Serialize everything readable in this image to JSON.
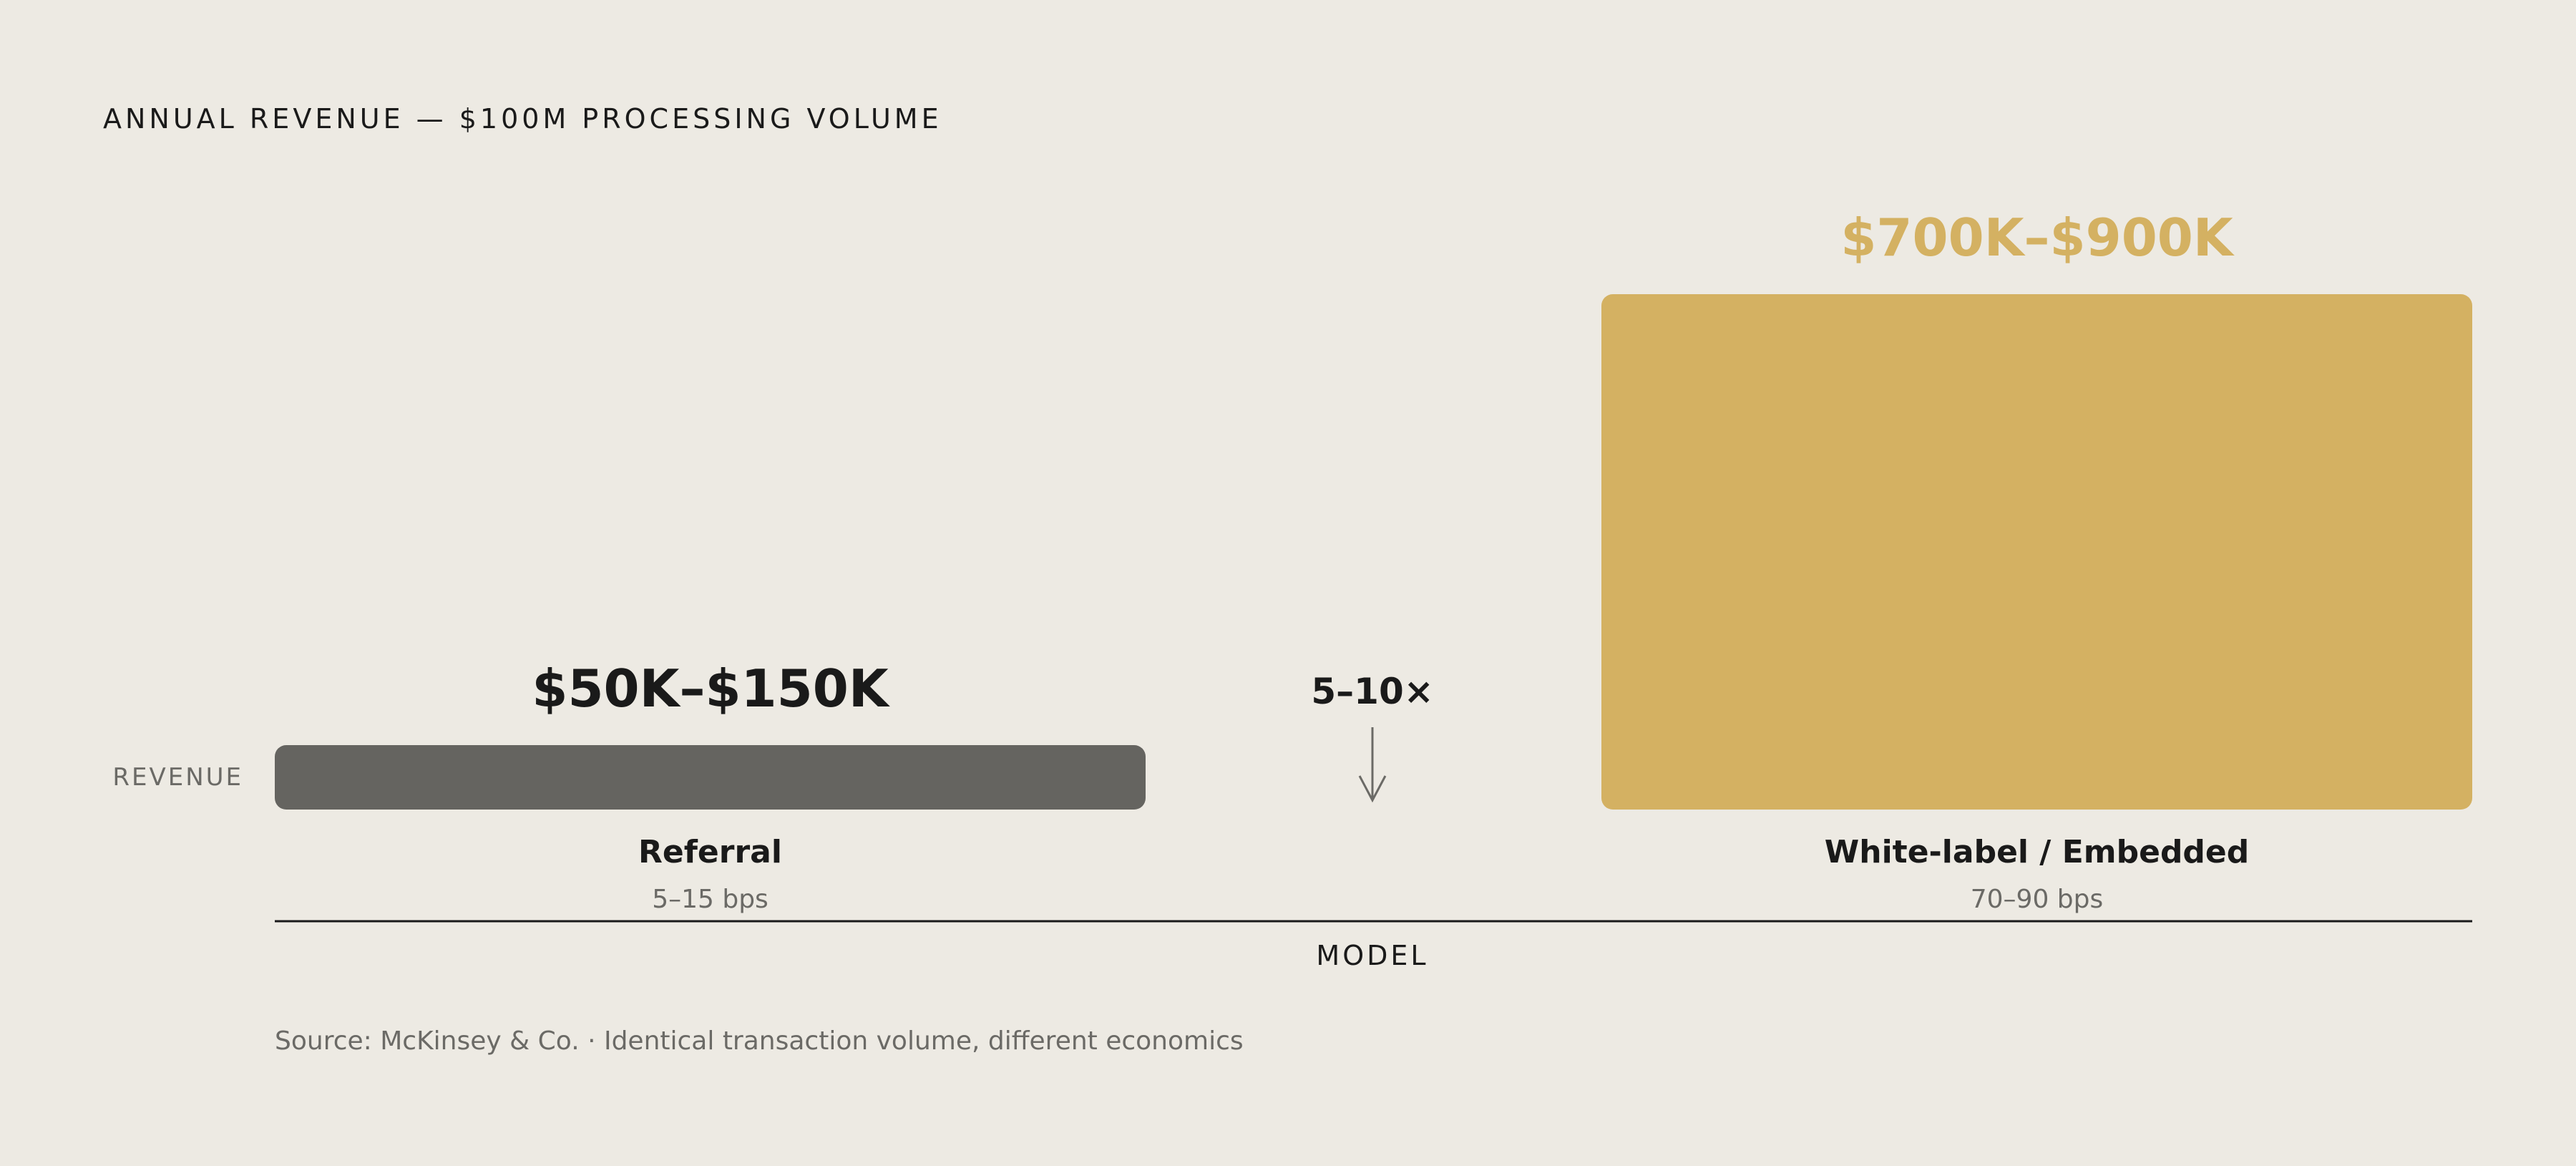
{
  "chart_data": {
    "type": "bar",
    "title": "ANNUAL REVENUE — $100M PROCESSING VOLUME",
    "ylabel": "REVENUE",
    "xlabel": "MODEL",
    "categories": [
      "Referral",
      "White-label / Embedded"
    ],
    "subcategories": [
      "5–15 bps",
      "70–90 bps"
    ],
    "value_labels": [
      "$50K–$150K",
      "$700K–$900K"
    ],
    "values": [
      100,
      800
    ],
    "range_low": [
      50,
      700
    ],
    "range_high": [
      150,
      900
    ],
    "units": "$K",
    "ylim": [
      0,
      800
    ],
    "colors": [
      "#656460",
      "#d4b162"
    ],
    "label_colors": [
      "#1a1a1a",
      "#d4b162"
    ],
    "multiplier_label": "5–10×",
    "grid": false,
    "legend": "none"
  },
  "source": "Source: McKinsey & Co. · Identical transaction volume, different economics"
}
